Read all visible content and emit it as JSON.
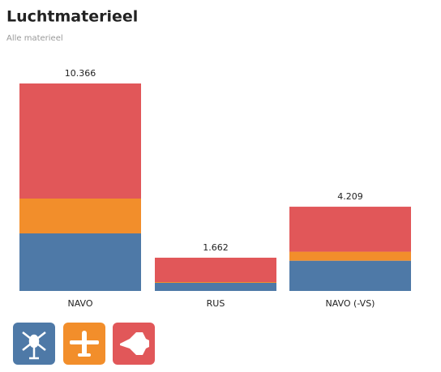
{
  "chart_data": {
    "type": "stacked_bar",
    "title": "Luchtmaterieel",
    "subtitle": "Alle materieel",
    "categories": [
      "NAVO",
      "RUS",
      "NAVO (-VS)"
    ],
    "series": [
      {
        "color": "#4e79a7",
        "values": [
          2875,
          405,
          1512
        ]
      },
      {
        "color": "#f28e2b",
        "values": [
          1741,
          40,
          450
        ]
      },
      {
        "color": "#e15759",
        "values": [
          5750,
          1217,
          2247
        ]
      }
    ],
    "totals": [
      {
        "value": 10366,
        "label": "10.366"
      },
      {
        "value": 1662,
        "label": "1.662"
      },
      {
        "value": 4209,
        "label": "4.209"
      }
    ]
  }
}
